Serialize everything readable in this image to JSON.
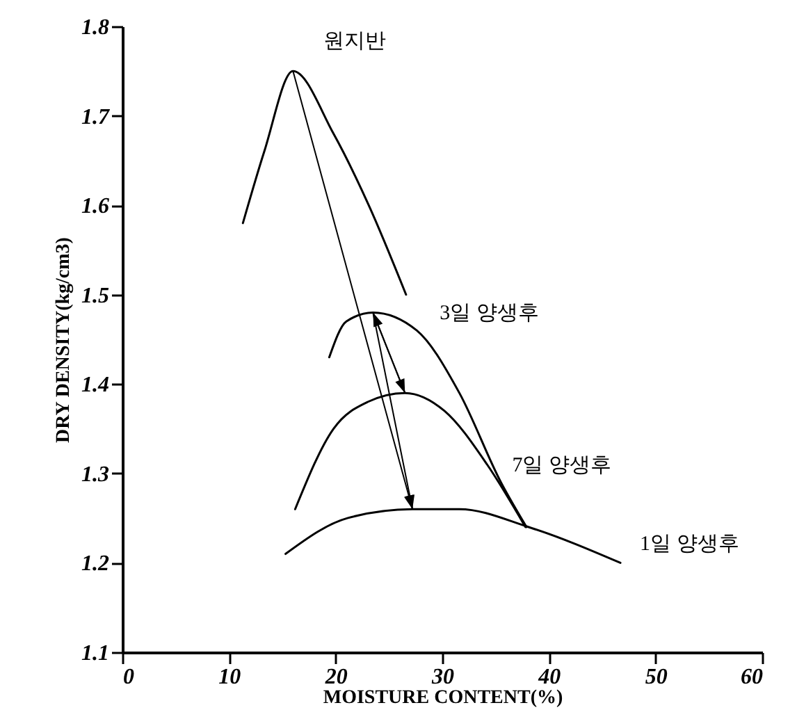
{
  "chart_data": {
    "type": "line",
    "xlabel": "MOISTURE CONTENT(%)",
    "ylabel": "DRY DENSITY(kg/cm3)",
    "xlim": [
      0,
      60
    ],
    "xticks": [
      0,
      10,
      20,
      30,
      40,
      50,
      60
    ],
    "ylim": [
      1.1,
      1.8
    ],
    "yticks": [
      1.1,
      1.2,
      1.3,
      1.4,
      1.5,
      1.6,
      1.7,
      1.8
    ],
    "grid": false,
    "legend": false,
    "marker": "none",
    "line_style": "solid",
    "series": [
      {
        "name": "원지반",
        "color": "#000000",
        "x": [
          11.3,
          13.3,
          16.0,
          19.8,
          23.1,
          26.6
        ],
        "values": [
          1.58,
          1.66,
          1.75,
          1.68,
          1.6,
          1.5
        ]
      },
      {
        "name": "3일 양생후",
        "color": "#000000",
        "x": [
          19.4,
          21.0,
          23.5,
          27.6,
          31.6,
          35.5,
          37.9
        ],
        "values": [
          1.43,
          1.47,
          1.48,
          1.46,
          1.39,
          1.29,
          1.24
        ]
      },
      {
        "name": "7일 양생후",
        "color": "#000000",
        "x": [
          16.2,
          19.8,
          23.0,
          26.5,
          30.2,
          34.2,
          37.8
        ],
        "values": [
          1.26,
          1.35,
          1.38,
          1.39,
          1.37,
          1.31,
          1.24
        ]
      },
      {
        "name": "1일 양생후",
        "color": "#000000",
        "x": [
          15.3,
          21.1,
          27.2,
          31.6,
          38.1,
          46.7
        ],
        "values": [
          1.21,
          1.25,
          1.26,
          1.26,
          1.24,
          1.2
        ]
      }
    ]
  }
}
